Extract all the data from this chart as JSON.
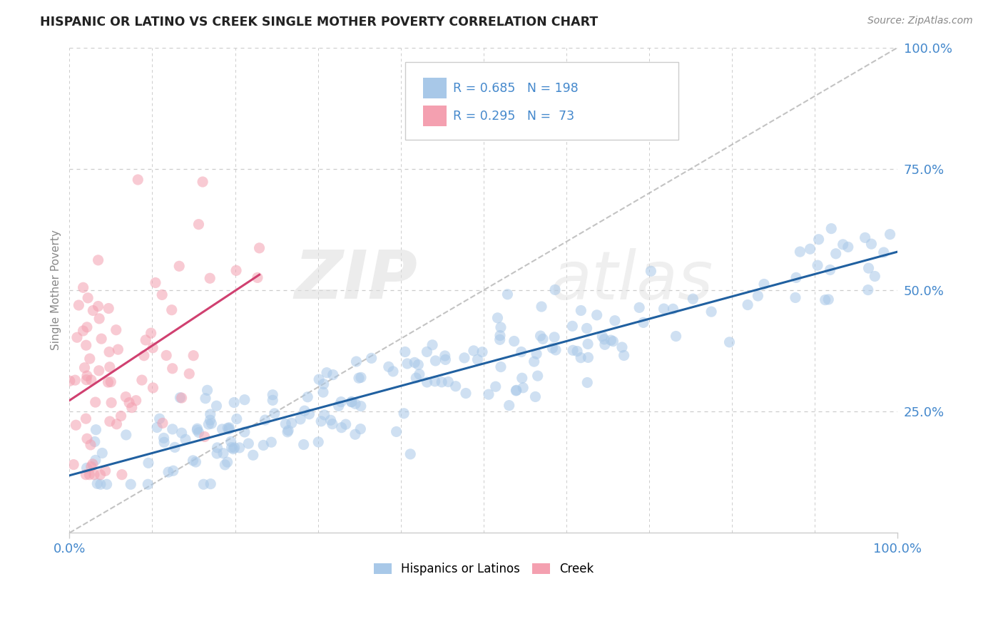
{
  "title": "HISPANIC OR LATINO VS CREEK SINGLE MOTHER POVERTY CORRELATION CHART",
  "source": "Source: ZipAtlas.com",
  "ylabel": "Single Mother Poverty",
  "right_ytick_labels": [
    "25.0%",
    "50.0%",
    "75.0%",
    "100.0%"
  ],
  "right_ytick_values": [
    0.25,
    0.5,
    0.75,
    1.0
  ],
  "legend1_label": "Hispanics or Latinos",
  "legend2_label": "Creek",
  "R_blue": 0.685,
  "N_blue": 198,
  "R_pink": 0.295,
  "N_pink": 73,
  "blue_color": "#a8c8e8",
  "blue_line_color": "#2060a0",
  "pink_color": "#f4a0b0",
  "pink_line_color": "#d04070",
  "scatter_size": 120,
  "scatter_alpha": 0.55,
  "watermark_zip": "ZIP",
  "watermark_atlas": "atlas",
  "grid_color": "#cccccc",
  "title_color": "#222222",
  "axis_color": "#4488cc",
  "source_color": "#888888"
}
